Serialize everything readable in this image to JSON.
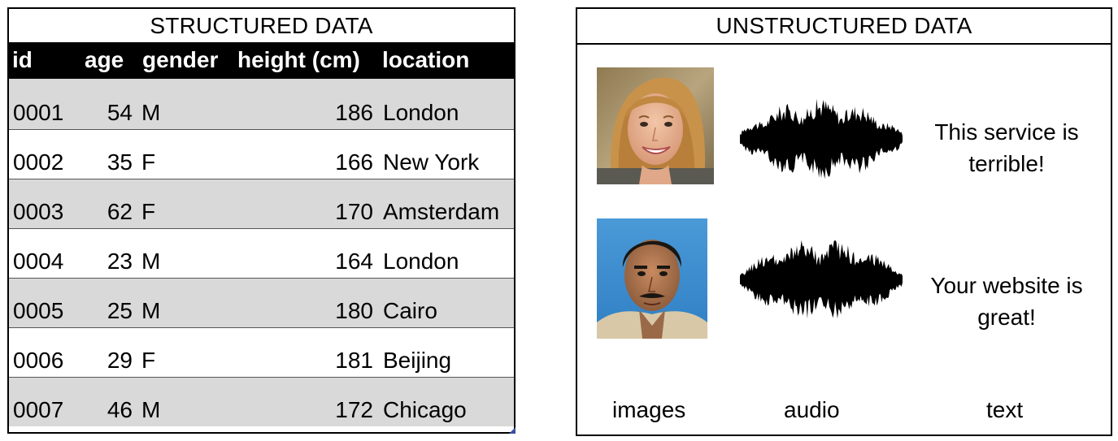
{
  "structured": {
    "title": "STRUCTURED DATA",
    "columns": [
      "id",
      "age",
      "gender",
      "height (cm)",
      "location"
    ],
    "rows": [
      {
        "id": "0001",
        "age": "54",
        "gender": "M",
        "height": "186",
        "location": "London"
      },
      {
        "id": "0002",
        "age": "35",
        "gender": "F",
        "height": "166",
        "location": "New York"
      },
      {
        "id": "0003",
        "age": "62",
        "gender": "F",
        "height": "170",
        "location": "Amsterdam"
      },
      {
        "id": "0004",
        "age": "23",
        "gender": "M",
        "height": "164",
        "location": "London"
      },
      {
        "id": "0005",
        "age": "25",
        "gender": "M",
        "height": "180",
        "location": "Cairo"
      },
      {
        "id": "0006",
        "age": "29",
        "gender": "F",
        "height": "181",
        "location": "Beijing"
      },
      {
        "id": "0007",
        "age": "46",
        "gender": "M",
        "height": "172",
        "location": "Chicago"
      }
    ],
    "colors": {
      "header_bg": "#000000",
      "header_fg": "#ffffff",
      "row_shade": "#d9d9d9",
      "handle": "#3a4fa0"
    }
  },
  "unstructured": {
    "title": "UNSTRUCTURED DATA",
    "items": [
      {
        "image": "woman-portrait",
        "audio": "waveform",
        "text_lines": [
          "This service is",
          "terrible!"
        ]
      },
      {
        "image": "man-portrait",
        "audio": "waveform",
        "text_lines": [
          "Your website is",
          "great!"
        ]
      }
    ],
    "captions": {
      "images": "images",
      "audio": "audio",
      "text": "text"
    }
  }
}
